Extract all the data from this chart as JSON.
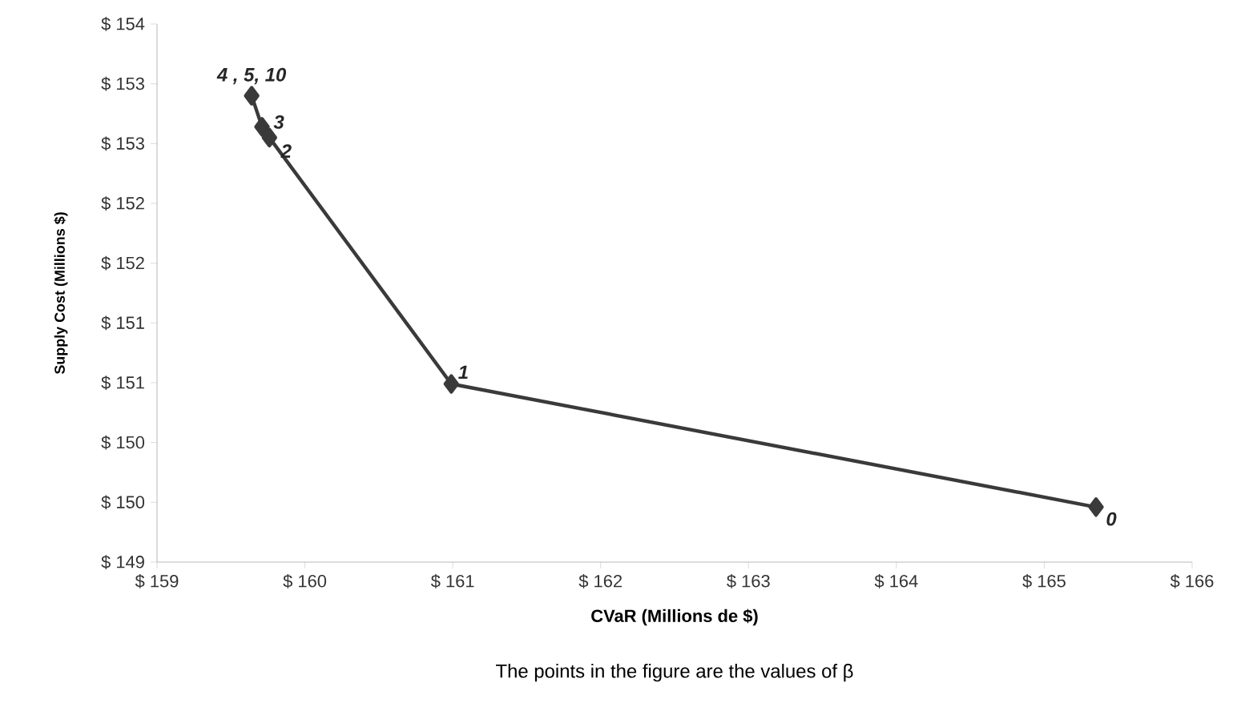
{
  "chart_data": {
    "type": "line",
    "xlabel": "CVaR (Millions de $)",
    "ylabel": "Supply Cost (Millions  $)",
    "x": [
      159.64,
      159.71,
      159.76,
      160.99,
      165.35
    ],
    "series": [
      {
        "color": "#3a3a3a",
        "values": [
          152.9,
          152.64,
          152.55,
          150.49,
          149.46
        ]
      }
    ],
    "xlim": [
      159,
      166
    ],
    "xticks": [
      {
        "value": 159,
        "label": "$ 159"
      },
      {
        "value": 160,
        "label": "$ 160"
      },
      {
        "value": 161,
        "label": "$ 161"
      },
      {
        "value": 162,
        "label": "$ 162"
      },
      {
        "value": 163,
        "label": "$ 163"
      },
      {
        "value": 164,
        "label": "$ 164"
      },
      {
        "value": 165,
        "label": "$ 165"
      },
      {
        "value": 166,
        "label": "$ 166"
      }
    ],
    "ylim": [
      149,
      153.5
    ],
    "yticks": [
      {
        "value": 149,
        "label": "$ 149"
      },
      {
        "value": 149.5,
        "label": "$ 150"
      },
      {
        "value": 150,
        "label": "$ 150"
      },
      {
        "value": 150.5,
        "label": "$ 151"
      },
      {
        "value": 151,
        "label": "$ 151"
      },
      {
        "value": 151.5,
        "label": "$ 152"
      },
      {
        "value": 152,
        "label": "$ 152"
      },
      {
        "value": 152.5,
        "label": "$ 153"
      },
      {
        "value": 153,
        "label": "$ 153"
      },
      {
        "value": 153.5,
        "label": "$ 154"
      }
    ],
    "annotations": [
      {
        "text": "4 , 5, 10",
        "x": 159.64,
        "y": 152.9
      },
      {
        "text": "3",
        "x": 159.71,
        "y": 152.64
      },
      {
        "text": "2",
        "x": 159.76,
        "y": 152.55
      },
      {
        "text": "1",
        "x": 160.99,
        "y": 150.49
      },
      {
        "text": "0",
        "x": 165.35,
        "y": 149.46
      },
      "The points in the figure are the values of β"
    ],
    "grid": false,
    "marker": "diamond",
    "line_style": "solid"
  }
}
